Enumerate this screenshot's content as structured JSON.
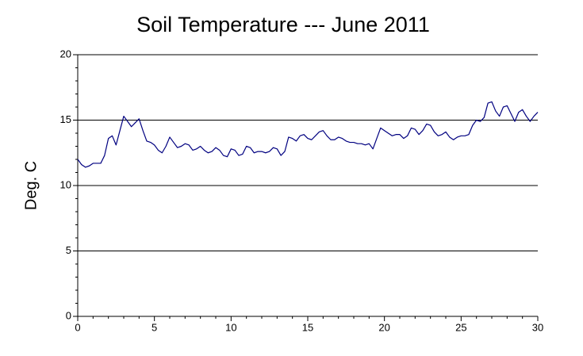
{
  "chart_data": {
    "type": "line",
    "title": "Soil Temperature --- June 2011",
    "y_label": "Deg. C",
    "x": [
      0,
      0.25,
      0.5,
      0.75,
      1,
      1.25,
      1.5,
      1.75,
      2,
      2.25,
      2.5,
      2.75,
      3,
      3.25,
      3.5,
      3.75,
      4,
      4.25,
      4.5,
      4.75,
      5,
      5.25,
      5.5,
      5.75,
      6,
      6.25,
      6.5,
      6.75,
      7,
      7.25,
      7.5,
      7.75,
      8,
      8.25,
      8.5,
      8.75,
      9,
      9.25,
      9.5,
      9.75,
      10,
      10.25,
      10.5,
      10.75,
      11,
      11.25,
      11.5,
      11.75,
      12,
      12.25,
      12.5,
      12.75,
      13,
      13.25,
      13.5,
      13.75,
      14,
      14.25,
      14.5,
      14.75,
      15,
      15.25,
      15.5,
      15.75,
      16,
      16.25,
      16.5,
      16.75,
      17,
      17.25,
      17.5,
      17.75,
      18,
      18.25,
      18.5,
      18.75,
      19,
      19.25,
      19.5,
      19.75,
      20,
      20.25,
      20.5,
      20.75,
      21,
      21.25,
      21.5,
      21.75,
      22,
      22.25,
      22.5,
      22.75,
      23,
      23.25,
      23.5,
      23.75,
      24,
      24.25,
      24.5,
      24.75,
      25,
      25.25,
      25.5,
      25.75,
      26,
      26.25,
      26.5,
      26.75,
      27,
      27.25,
      27.5,
      27.75,
      28,
      28.25,
      28.5,
      28.75,
      29,
      29.25,
      29.5,
      29.75,
      30
    ],
    "series": [
      {
        "color": "#000080",
        "values": [
          12.0,
          11.6,
          11.4,
          11.5,
          11.7,
          11.7,
          11.7,
          12.3,
          13.6,
          13.8,
          13.1,
          14.2,
          15.3,
          14.9,
          14.5,
          14.8,
          15.1,
          14.2,
          13.4,
          13.3,
          13.1,
          12.7,
          12.5,
          13.0,
          13.7,
          13.3,
          12.9,
          13.0,
          13.2,
          13.1,
          12.7,
          12.8,
          13.0,
          12.7,
          12.5,
          12.6,
          12.9,
          12.7,
          12.3,
          12.2,
          12.8,
          12.7,
          12.3,
          12.4,
          13.0,
          12.9,
          12.5,
          12.6,
          12.6,
          12.5,
          12.6,
          12.9,
          12.8,
          12.3,
          12.6,
          13.7,
          13.6,
          13.4,
          13.8,
          13.9,
          13.6,
          13.5,
          13.8,
          14.1,
          14.2,
          13.8,
          13.5,
          13.5,
          13.7,
          13.6,
          13.4,
          13.3,
          13.3,
          13.2,
          13.2,
          13.1,
          13.2,
          12.8,
          13.6,
          14.4,
          14.2,
          14.0,
          13.8,
          13.9,
          13.9,
          13.6,
          13.8,
          14.4,
          14.3,
          13.9,
          14.2,
          14.7,
          14.6,
          14.1,
          13.8,
          13.9,
          14.1,
          13.7,
          13.5,
          13.7,
          13.8,
          13.8,
          13.9,
          14.6,
          15.0,
          14.9,
          15.2,
          16.3,
          16.4,
          15.7,
          15.3,
          16.0,
          16.1,
          15.5,
          14.9,
          15.6,
          15.8,
          15.3,
          14.9,
          15.3,
          15.6
        ]
      }
    ],
    "xlim": [
      0,
      30
    ],
    "xticks": [
      0,
      5,
      10,
      15,
      20,
      25,
      30
    ],
    "xminorticks": [
      1,
      2,
      3,
      4,
      6,
      7,
      8,
      9,
      11,
      12,
      13,
      14,
      16,
      17,
      18,
      19,
      21,
      22,
      23,
      24,
      26,
      27,
      28,
      29
    ],
    "ylim": [
      0,
      20
    ],
    "yticks": [
      0,
      5,
      10,
      15,
      20
    ],
    "yminorticks": [
      1,
      2,
      3,
      4,
      6,
      7,
      8,
      9,
      11,
      12,
      13,
      14,
      16,
      17,
      18,
      19
    ],
    "grid": true
  }
}
